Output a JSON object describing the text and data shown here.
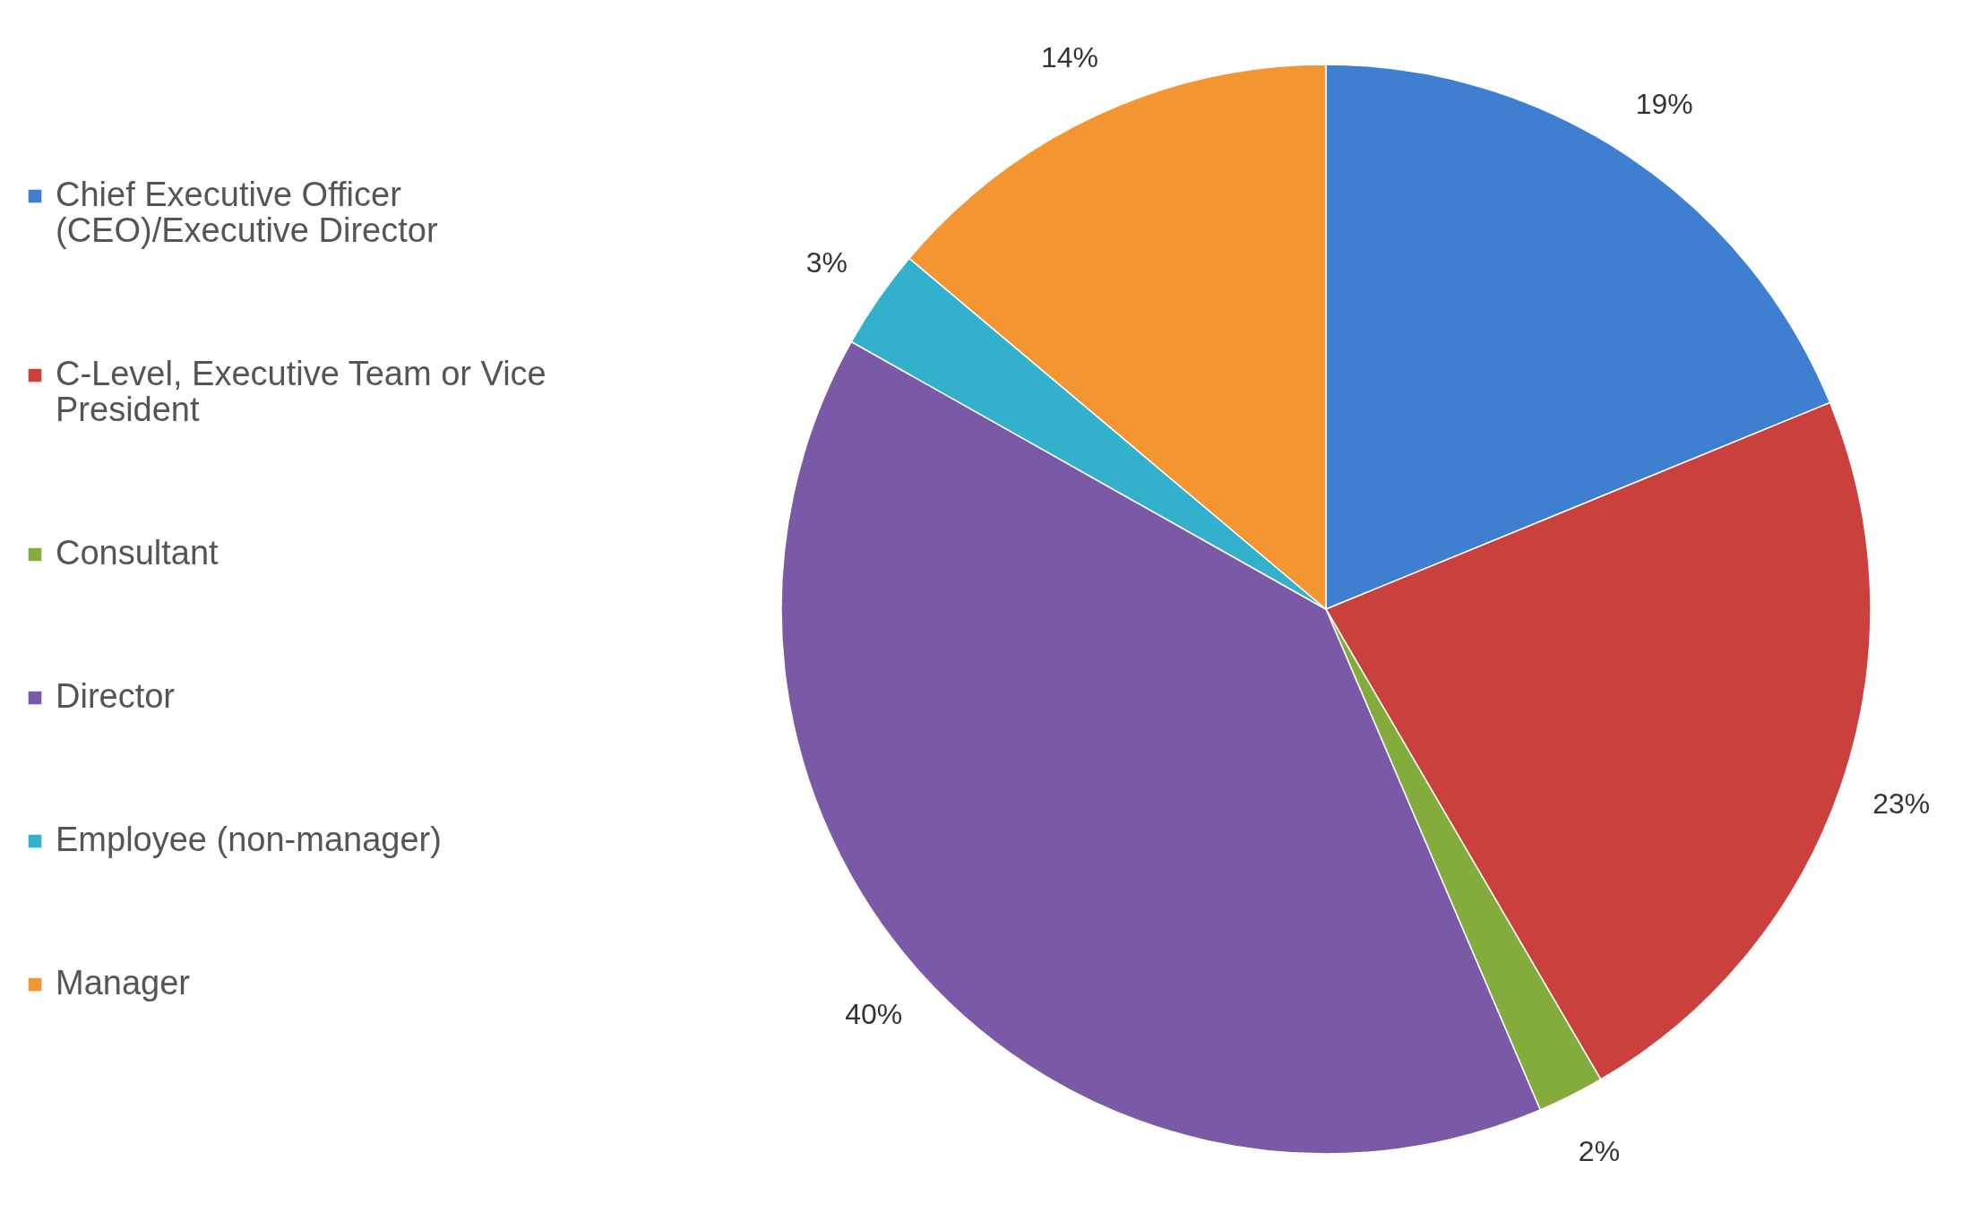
{
  "chart_data": {
    "type": "pie",
    "categories": [
      "Chief Executive Officer (CEO)/Executive Director",
      "C-Level, Executive Team or Vice President",
      "Consultant",
      "Director",
      "Employee (non-manager)",
      "Manager"
    ],
    "values": [
      19,
      23,
      2,
      40,
      3,
      14
    ],
    "colors": [
      "#3f7fcf",
      "#c9403d",
      "#84ac3c",
      "#7a5aa6",
      "#33b0cc",
      "#f39530"
    ],
    "value_labels": [
      "19%",
      "23%",
      "2%",
      "40%",
      "3%",
      "14%"
    ],
    "legend": "left"
  }
}
